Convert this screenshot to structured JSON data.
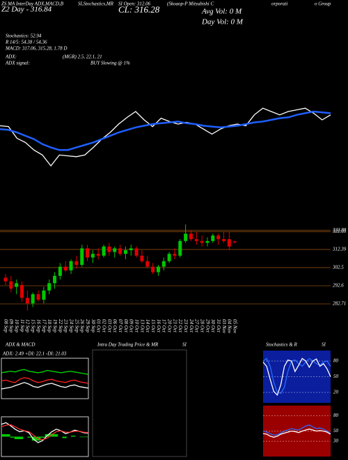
{
  "header": {
    "line1": [
      "ZS MA InterDay ADX,MACD,B",
      "SI,Stochastics,MR",
      "SI Open: 312.06",
      "(Skoaop-P Mitsubishi C",
      "orporati",
      "o Group"
    ],
    "day": "Z2 Day - 316.84",
    "close": "CL: 316.28",
    "avg_vol": "Avg Vol: 0   M",
    "day_vol": "Day Vol: 0   M",
    "stochastics": "Stochastics: 52.94",
    "r_line": "R  14/5: 54.38 / 54.36",
    "macd": "MACD: 317.06, 315.28, 1.78  D",
    "adx": "ADX:",
    "adx_values": "(MGR) 2.5, 22.1, 21",
    "adx_signal_label": "ADX  signal:",
    "adx_signal": "BUY Slowing @ 1%"
  },
  "chart_data": [
    {
      "type": "candlestick",
      "categories": [
        "08 Sep",
        "09 Sep",
        "10 Sep",
        "11 Sep",
        "12 Sep",
        "15 Sep",
        "16 Sep",
        "17 Sep",
        "18 Sep",
        "19 Sep",
        "22 Sep",
        "23 Sep",
        "24 Sep",
        "25 Sep",
        "26 Sep",
        "29 Sep",
        "30 Sep",
        "01 Oct",
        "02 Oct",
        "03 Oct",
        "06 Oct",
        "07 Oct",
        "08 Oct",
        "09 Oct",
        "10 Oct",
        "13 Oct",
        "14 Oct",
        "15 Oct",
        "16 Oct",
        "17 Oct",
        "20 Oct",
        "21 Oct",
        "22 Oct",
        "23 Oct",
        "24 Oct",
        "27 Oct",
        "28 Oct",
        "29 Oct",
        "30 Oct",
        "31 Oct",
        "03 Nov",
        "04 Nov",
        "05 Nov"
      ],
      "open": [
        297,
        295,
        292,
        293,
        286,
        283,
        288,
        285,
        290,
        294,
        298,
        303,
        301,
        306,
        304,
        313,
        308,
        310,
        309,
        314,
        311,
        313,
        310,
        312,
        313,
        309,
        306,
        303,
        300,
        303,
        306,
        310,
        309,
        317,
        321,
        318,
        317,
        316,
        317,
        320,
        318,
        318,
        316.8
      ],
      "high": [
        299,
        298,
        296,
        295,
        290,
        289,
        290,
        292,
        296,
        300,
        305,
        306,
        307,
        309,
        315,
        315,
        312,
        313,
        315,
        316,
        314,
        315,
        314,
        315,
        314,
        312,
        309,
        305,
        304,
        308,
        311,
        313,
        318,
        326,
        323,
        322,
        320,
        319,
        321,
        321,
        322,
        322,
        317.2
      ],
      "low": [
        293,
        289,
        288,
        284,
        279,
        281,
        284,
        283,
        288,
        291,
        296,
        300,
        299,
        302,
        303,
        306,
        305,
        307,
        308,
        309,
        308,
        309,
        307,
        309,
        308,
        305,
        302,
        299,
        298,
        301,
        305,
        307,
        308,
        316,
        317,
        315,
        314,
        314,
        316,
        315,
        316,
        312,
        315.6
      ],
      "close": [
        295,
        291,
        294,
        286,
        283,
        288,
        285,
        290,
        294,
        298,
        303,
        301,
        306,
        304,
        313,
        308,
        310,
        309,
        314,
        311,
        313,
        310,
        312,
        313,
        309,
        306,
        303,
        300,
        303,
        306,
        310,
        309,
        317,
        321,
        318,
        317,
        316,
        317,
        320,
        318,
        317,
        314,
        316.28
      ],
      "up_color": "#00c800",
      "down_color": "#e00000",
      "ylim": [
        275.5,
        334.4
      ],
      "yticks": [
        322.88,
        322.03,
        312.39,
        302.5,
        292.6,
        282.71
      ],
      "grid": true,
      "grid_color": "#8b4a13"
    },
    {
      "type": "line",
      "ylim": [
        0,
        100
      ],
      "series": [
        {
          "color": "#ffffff",
          "values": [
            58,
            57,
            43,
            38,
            29,
            23,
            10,
            23,
            22,
            21,
            23,
            32,
            42,
            50,
            60,
            68,
            75,
            65,
            57,
            67,
            63,
            60,
            62,
            60,
            54,
            48,
            54,
            58,
            60,
            58,
            71,
            79,
            75,
            71,
            75,
            77,
            79,
            73,
            65,
            71
          ]
        },
        {
          "color": "#1f5fff",
          "values": [
            54,
            53,
            50,
            46,
            42,
            36,
            32,
            29,
            29,
            32,
            35,
            38,
            42,
            46,
            50,
            53,
            56,
            58,
            60,
            61,
            62,
            63,
            61,
            60,
            58,
            57,
            56,
            57,
            58,
            60,
            62,
            63,
            65,
            67,
            68,
            71,
            73,
            75,
            74,
            73
          ]
        }
      ]
    },
    {
      "type": "line",
      "title": "ADX  & MACD",
      "subtitle": "ADX: 2.49  +DI: 22.1  -DI: 21.03",
      "ylim": [
        0,
        50
      ],
      "border": "#ffffff",
      "series": [
        {
          "color": "#00dd00",
          "values": [
            32,
            33,
            34,
            33,
            35,
            36,
            34,
            33,
            32,
            33,
            35,
            34,
            33,
            32,
            33,
            34,
            33,
            32,
            31,
            30
          ]
        },
        {
          "color": "#ff2020",
          "values": [
            22,
            23,
            21,
            20,
            24,
            26,
            25,
            22,
            20,
            21,
            23,
            24,
            22,
            21,
            20,
            22,
            23,
            21,
            20,
            19
          ]
        },
        {
          "color": "#ffffff",
          "values": [
            12,
            13,
            14,
            16,
            18,
            20,
            18,
            15,
            14,
            16,
            18,
            19,
            17,
            15,
            14,
            16,
            17,
            15,
            14,
            13
          ]
        }
      ]
    },
    {
      "type": "line",
      "ylim": [
        -4,
        4
      ],
      "border": "#ffffff",
      "histogram": {
        "color": "#00cc00",
        "values": [
          0.5,
          0.5,
          -0.2,
          -0.5,
          -0.5,
          0,
          -0.2,
          -0.8,
          -0.8,
          -0.2,
          0.5,
          0.6,
          0.5,
          0,
          -0.3,
          0,
          0.2,
          0,
          -0.1,
          -0.1
        ]
      },
      "series": [
        {
          "color": "#ffffff",
          "values": [
            2.5,
            2.8,
            2.2,
            1.5,
            1.0,
            1.2,
            0.8,
            -0.5,
            -1.2,
            -0.8,
            0.2,
            1.0,
            1.5,
            1.2,
            0.6,
            0.9,
            1.3,
            1.1,
            0.8,
            0.7
          ]
        },
        {
          "color": "#ff3030",
          "values": [
            2.0,
            2.3,
            2.4,
            2.0,
            1.5,
            1.2,
            1.0,
            0.3,
            -0.4,
            -0.6,
            -0.3,
            0.4,
            1.0,
            1.2,
            0.9,
            0.9,
            1.1,
            1.1,
            0.9,
            0.8
          ]
        }
      ]
    },
    {
      "type": "line",
      "title": "Intra  Day Trading Price  & MR",
      "title2": "SI",
      "border": "#555555",
      "series": []
    },
    {
      "type": "line",
      "title": "Stochastics & R",
      "title2": "SI",
      "ylim": [
        0,
        100
      ],
      "yticks": [
        80,
        50,
        20
      ],
      "background": "#0a1e9e",
      "series": [
        {
          "color": "#2a6bff",
          "values": [
            80,
            85,
            70,
            40,
            20,
            18,
            30,
            60,
            80,
            82,
            75,
            70,
            78,
            85,
            80,
            75,
            72,
            78,
            80,
            70
          ]
        },
        {
          "color": "#ffffff",
          "values": [
            78,
            70,
            45,
            22,
            15,
            35,
            70,
            82,
            80,
            60,
            72,
            85,
            80,
            68,
            80,
            84,
            70,
            75,
            65,
            50
          ]
        }
      ]
    },
    {
      "type": "line",
      "ylim": [
        0,
        100
      ],
      "yticks": [
        80,
        50,
        30
      ],
      "background": "#9b0000",
      "series": [
        {
          "color": "#2a6bff",
          "values": [
            50,
            48,
            45,
            42,
            43,
            46,
            50,
            52,
            55,
            53,
            52,
            56,
            60,
            62,
            58,
            55,
            56,
            54,
            50,
            45
          ]
        },
        {
          "color": "#ffffff",
          "values": [
            45,
            44,
            40,
            38,
            40,
            44,
            46,
            48,
            50,
            49,
            47,
            50,
            52,
            54,
            52,
            50,
            51,
            50,
            48,
            44
          ]
        }
      ]
    }
  ]
}
